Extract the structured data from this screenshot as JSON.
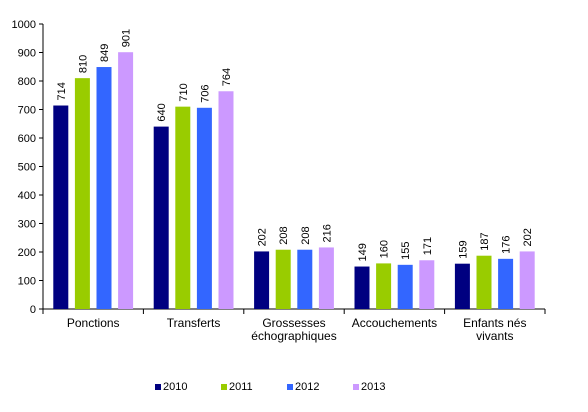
{
  "chart_data": {
    "type": "bar",
    "title": "",
    "xlabel": "",
    "ylabel": "",
    "ylim": [
      0,
      1000
    ],
    "yticks": [
      0,
      100,
      200,
      300,
      400,
      500,
      600,
      700,
      800,
      900,
      1000
    ],
    "grid": false,
    "legend_position": "bottom",
    "categories": [
      [
        "Ponctions"
      ],
      [
        "Transferts"
      ],
      [
        "Grossesses",
        "échographiques"
      ],
      [
        "Accouchements"
      ],
      [
        "Enfants nés",
        "vivants"
      ]
    ],
    "series": [
      {
        "name": "2010",
        "color": "#000080",
        "values": [
          714,
          640,
          202,
          149,
          159
        ]
      },
      {
        "name": "2011",
        "color": "#99CC00",
        "values": [
          810,
          710,
          208,
          160,
          187
        ]
      },
      {
        "name": "2012",
        "color": "#3366FF",
        "values": [
          849,
          706,
          208,
          155,
          176
        ]
      },
      {
        "name": "2013",
        "color": "#CC99FF",
        "values": [
          901,
          764,
          216,
          171,
          202
        ]
      }
    ]
  }
}
